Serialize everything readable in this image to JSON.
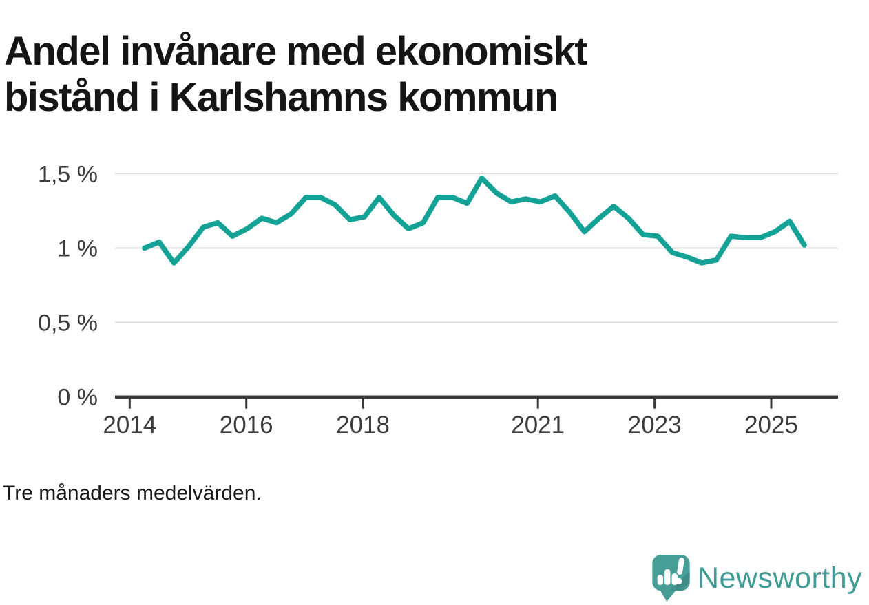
{
  "title": "Andel invånare med ekonomiskt bistånd i Karlshamns kommun",
  "footnote": "Tre månaders medelvärden.",
  "logo": {
    "brand": "Newsworthy"
  },
  "colors": {
    "line": "#14a296",
    "logo_teal": "#3f9d96",
    "grid": "#dcdcdc",
    "axis": "#3a3a3a",
    "title_text": "#151515",
    "label_text": "#3d3d3d"
  },
  "chart_data": {
    "type": "line",
    "title": "Andel invånare med ekonomiskt bistånd i Karlshamns kommun",
    "subtitle": "Tre månaders medelvärden.",
    "unit": "%",
    "xlabel": "",
    "ylabel": "",
    "legend": "none",
    "grid": "horizontal",
    "ylim": [
      0,
      1.6
    ],
    "xlim_years": [
      2013.75,
      2026.15
    ],
    "xticks": [
      2014,
      2016,
      2018,
      2021,
      2023,
      2025
    ],
    "ytick_values": [
      0,
      0.5,
      1,
      1.5
    ],
    "ytick_labels": [
      "0 %",
      "0,5 %",
      "1 %",
      "1,5 %"
    ],
    "x": [
      "2014 Q2",
      "2014 Q3",
      "2014 Q4",
      "2015 Q1",
      "2015 Q2",
      "2015 Q3",
      "2015 Q4",
      "2016 Q1",
      "2016 Q2",
      "2016 Q3",
      "2016 Q4",
      "2017 Q1",
      "2017 Q2",
      "2017 Q3",
      "2017 Q4",
      "2018 Q1",
      "2018 Q2",
      "2018 Q3",
      "2018 Q4",
      "2019 Q1",
      "2019 Q2",
      "2019 Q3",
      "2019 Q4",
      "2020 Q1",
      "2020 Q2",
      "2020 Q3",
      "2020 Q4",
      "2021 Q1",
      "2021 Q2",
      "2021 Q3",
      "2021 Q4",
      "2022 Q1",
      "2022 Q2",
      "2022 Q3",
      "2022 Q4",
      "2023 Q1",
      "2023 Q2",
      "2023 Q3",
      "2023 Q4",
      "2024 Q1",
      "2024 Q2",
      "2024 Q3",
      "2024 Q4",
      "2025 Q1",
      "2025 Q2",
      "2025 Q3"
    ],
    "values": [
      1.0,
      1.04,
      0.9,
      1.01,
      1.14,
      1.17,
      1.08,
      1.13,
      1.2,
      1.17,
      1.23,
      1.34,
      1.34,
      1.29,
      1.19,
      1.21,
      1.34,
      1.22,
      1.13,
      1.17,
      1.34,
      1.34,
      1.3,
      1.47,
      1.37,
      1.31,
      1.33,
      1.31,
      1.35,
      1.24,
      1.11,
      1.2,
      1.28,
      1.2,
      1.09,
      1.08,
      0.97,
      0.94,
      0.9,
      0.92,
      1.08,
      1.07,
      1.07,
      1.11,
      1.18,
      1.02
    ],
    "line_color": "#14a296"
  }
}
